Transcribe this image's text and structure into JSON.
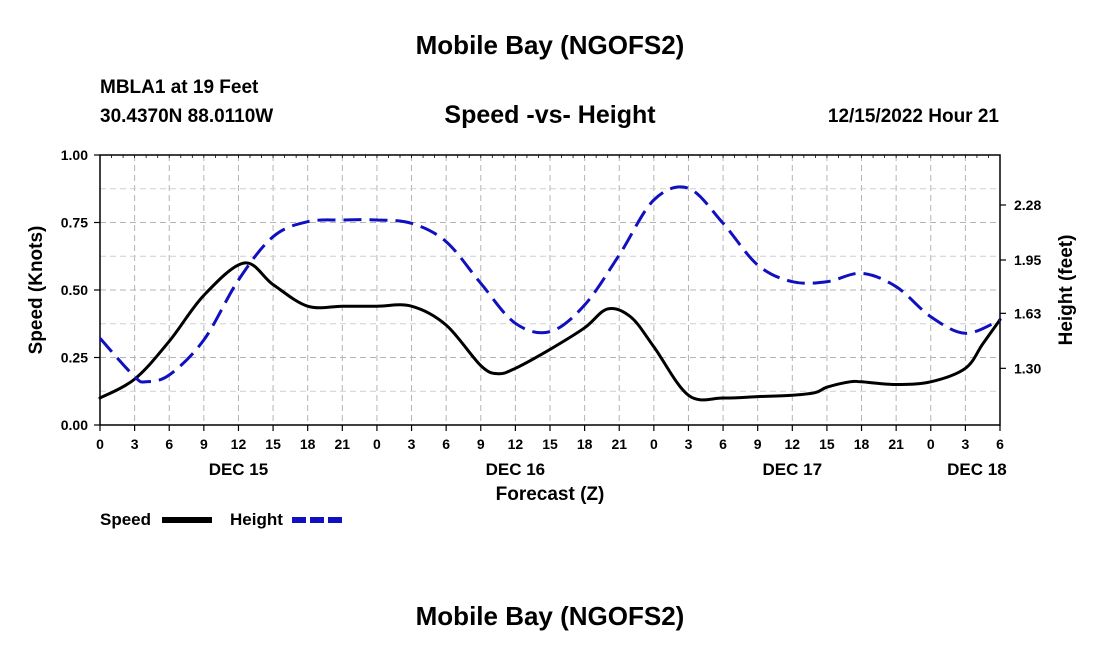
{
  "header": {
    "title": "Mobile Bay (NGOFS2)",
    "station": "MBLA1 at 19 Feet",
    "coords": "30.4370N  88.0110W",
    "subtitle": "Speed -vs- Height",
    "run_time": "12/15/2022 Hour 21"
  },
  "footer": {
    "title": "Mobile Bay (NGOFS2)"
  },
  "chart_data": {
    "type": "line",
    "title": "Speed -vs- Height",
    "xlabel": "Forecast (Z)",
    "ylabel": "Speed (Knots)",
    "y2label": "Height (feet)",
    "x_unit": "hours from Dec 15 00Z",
    "xlim": [
      0,
      78
    ],
    "ylim": [
      0,
      1.0
    ],
    "y2lim": [
      0.96,
      2.58
    ],
    "grid": true,
    "x_ticks": [
      {
        "x": 0,
        "label": "0"
      },
      {
        "x": 3,
        "label": "3"
      },
      {
        "x": 6,
        "label": "6"
      },
      {
        "x": 9,
        "label": "9"
      },
      {
        "x": 12,
        "label": "12"
      },
      {
        "x": 15,
        "label": "15"
      },
      {
        "x": 18,
        "label": "18"
      },
      {
        "x": 21,
        "label": "21"
      },
      {
        "x": 24,
        "label": "0"
      },
      {
        "x": 27,
        "label": "3"
      },
      {
        "x": 30,
        "label": "6"
      },
      {
        "x": 33,
        "label": "9"
      },
      {
        "x": 36,
        "label": "12"
      },
      {
        "x": 39,
        "label": "15"
      },
      {
        "x": 42,
        "label": "18"
      },
      {
        "x": 45,
        "label": "21"
      },
      {
        "x": 48,
        "label": "0"
      },
      {
        "x": 51,
        "label": "3"
      },
      {
        "x": 54,
        "label": "6"
      },
      {
        "x": 57,
        "label": "9"
      },
      {
        "x": 60,
        "label": "12"
      },
      {
        "x": 63,
        "label": "15"
      },
      {
        "x": 66,
        "label": "18"
      },
      {
        "x": 69,
        "label": "21"
      },
      {
        "x": 72,
        "label": "0"
      },
      {
        "x": 75,
        "label": "3"
      },
      {
        "x": 78,
        "label": "6"
      }
    ],
    "date_labels": [
      {
        "x": 12,
        "label": "DEC 15"
      },
      {
        "x": 36,
        "label": "DEC 16"
      },
      {
        "x": 60,
        "label": "DEC 17"
      },
      {
        "x": 76,
        "label": "DEC 18"
      }
    ],
    "y_ticks": [
      0,
      0.25,
      0.5,
      0.75,
      1.0
    ],
    "y_tick_labels": [
      "0.00",
      "0.25",
      "0.50",
      "0.75",
      "1.00"
    ],
    "y2_ticks": [
      1.3,
      1.63,
      1.95,
      2.28
    ],
    "y2_tick_labels": [
      "1.30",
      "1.63",
      "1.95",
      "2.28"
    ],
    "legend": [
      {
        "name": "Speed",
        "color": "#000000",
        "style": "solid"
      },
      {
        "name": "Height",
        "color": "#1010c0",
        "style": "dashed"
      }
    ],
    "series": [
      {
        "name": "Speed",
        "axis": "left",
        "color": "#000000",
        "dash": false,
        "x": [
          0,
          3,
          6,
          9,
          12.5,
          15,
          18,
          21,
          24,
          27,
          30,
          33,
          34.5,
          36,
          39,
          42,
          44,
          46,
          48,
          51,
          54,
          57,
          60,
          62,
          63,
          65,
          66,
          69,
          72,
          75,
          76.5,
          78
        ],
        "y": [
          0.1,
          0.17,
          0.31,
          0.48,
          0.6,
          0.52,
          0.44,
          0.44,
          0.44,
          0.44,
          0.37,
          0.22,
          0.19,
          0.21,
          0.28,
          0.36,
          0.43,
          0.4,
          0.29,
          0.11,
          0.1,
          0.105,
          0.11,
          0.12,
          0.14,
          0.16,
          0.16,
          0.15,
          0.16,
          0.21,
          0.3,
          0.39
        ]
      },
      {
        "name": "Height",
        "axis": "right",
        "color": "#1010c0",
        "dash": true,
        "x": [
          0,
          3,
          4,
          6,
          9,
          12,
          15,
          18,
          21,
          24,
          27,
          30,
          33,
          36,
          39,
          42,
          45,
          48,
          51,
          54,
          57,
          60,
          63,
          66,
          69,
          72,
          75,
          78
        ],
        "y": [
          1.48,
          1.25,
          1.22,
          1.26,
          1.47,
          1.83,
          2.09,
          2.18,
          2.19,
          2.19,
          2.17,
          2.06,
          1.81,
          1.57,
          1.52,
          1.68,
          1.98,
          2.31,
          2.38,
          2.17,
          1.92,
          1.82,
          1.82,
          1.87,
          1.79,
          1.61,
          1.51,
          1.59
        ]
      }
    ]
  }
}
